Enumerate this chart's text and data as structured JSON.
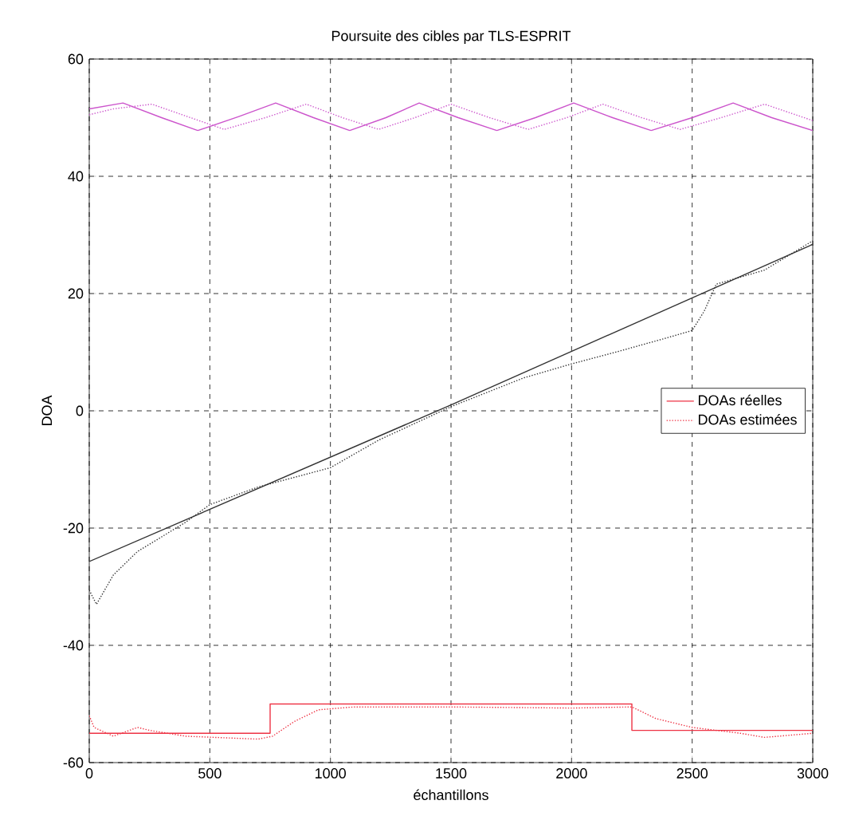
{
  "chart_data": {
    "type": "line",
    "title": "Poursuite des cibles par TLS-ESPRIT",
    "xlabel": "échantillons",
    "ylabel": "DOA",
    "xlim": [
      0,
      3000
    ],
    "ylim": [
      -60,
      60
    ],
    "xticks": [
      0,
      500,
      1000,
      1500,
      2000,
      2500,
      3000
    ],
    "yticks": [
      -60,
      -40,
      -20,
      0,
      20,
      40,
      60
    ],
    "grid": true,
    "legend": "right",
    "series": [
      {
        "name": "DOAs réelles",
        "color": "#ee3344",
        "line_style": "solid",
        "x": [
          0,
          750,
          750,
          2250,
          2250,
          3000
        ],
        "values": [
          -55,
          -55,
          -50,
          -50,
          -54.5,
          -54.5
        ]
      },
      {
        "name": "DOAs estimées",
        "color": "#ee3344",
        "line_style": "dotted",
        "x": [
          0,
          20,
          100,
          200,
          250,
          400,
          700,
          760,
          850,
          950,
          1100,
          1500,
          2000,
          2250,
          2350,
          2500,
          2700,
          2800,
          3000
        ],
        "values": [
          -52,
          -54,
          -55.5,
          -54,
          -54.5,
          -55.5,
          -56,
          -55.5,
          -53,
          -51,
          -50.5,
          -50.5,
          -50.7,
          -50.5,
          -52.5,
          -54,
          -55,
          -55.7,
          -55
        ]
      },
      {
        "color": "#cc55cc",
        "line_style": "solid",
        "x": [
          0,
          140,
          300,
          450,
          620,
          773,
          930,
          1080,
          1230,
          1368,
          1530,
          1690,
          1850,
          2009,
          2170,
          2330,
          2500,
          2670,
          2830,
          3000
        ],
        "values": [
          51.5,
          52.5,
          50,
          47.8,
          50.2,
          52.5,
          50,
          47.8,
          50,
          52.5,
          50,
          47.8,
          50,
          52.5,
          50,
          47.8,
          50,
          52.5,
          50,
          47.8
        ]
      },
      {
        "color": "#cc55cc",
        "line_style": "dotted",
        "x": [
          0,
          100,
          260,
          420,
          560,
          730,
          900,
          1050,
          1200,
          1350,
          1500,
          1660,
          1820,
          1980,
          2130,
          2290,
          2450,
          2620,
          2800,
          3000
        ],
        "values": [
          50.5,
          51.5,
          52.3,
          50,
          48,
          50,
          52.3,
          50,
          48,
          50,
          52.3,
          50,
          48,
          50,
          52.3,
          50,
          48,
          50,
          52.3,
          49.5
        ]
      },
      {
        "color": "#333333",
        "line_style": "solid",
        "x": [
          0,
          1500,
          3000
        ],
        "values": [
          -25.7,
          1,
          28.4
        ]
      },
      {
        "color": "#333333",
        "line_style": "dotted",
        "x": [
          0,
          30,
          100,
          200,
          400,
          500,
          700,
          1000,
          1200,
          1500,
          1800,
          2000,
          2200,
          2400,
          2500,
          2550,
          2600,
          2800,
          3000
        ],
        "values": [
          -30.6,
          -33,
          -28,
          -24,
          -19,
          -16,
          -13,
          -9.7,
          -5,
          0.7,
          5.6,
          8,
          10.2,
          12.5,
          13.7,
          17,
          21.6,
          24,
          29
        ]
      }
    ]
  }
}
